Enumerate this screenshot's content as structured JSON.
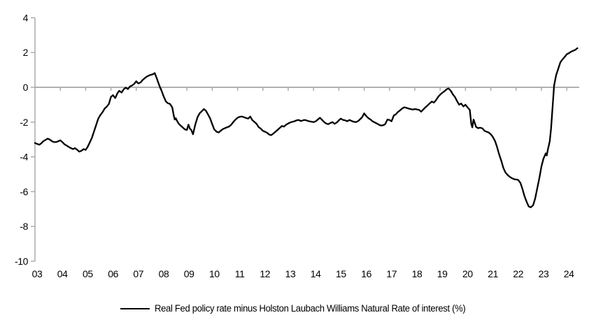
{
  "legend": {
    "series_label": "Real Fed policy rate minus Holston Laubach Williams Natural Rate of interest (%)"
  },
  "colors": {
    "series_line": "#000000",
    "axis_gray": "#a6a6a6",
    "background": "#ffffff",
    "tick_text": "#000000"
  },
  "chart_data": {
    "type": "line",
    "title": "",
    "xlabel": "",
    "ylabel": "",
    "ylim": [
      -10,
      4
    ],
    "xlim_years": [
      2003,
      2024.5
    ],
    "grid": "none",
    "zero_line": true,
    "legend_position": "bottom-center",
    "y_ticks": [
      4,
      2,
      0,
      -2,
      -4,
      -6,
      -8,
      -10
    ],
    "x_tick_labels": [
      "03",
      "04",
      "05",
      "06",
      "07",
      "08",
      "09",
      "10",
      "11",
      "12",
      "13",
      "14",
      "15",
      "16",
      "17",
      "18",
      "19",
      "20",
      "21",
      "22",
      "23",
      "24"
    ],
    "series": [
      {
        "name": "Real Fed policy rate minus Holston Laubach Williams Natural Rate of interest (%)",
        "color": "#000000",
        "points": [
          [
            2003.0,
            -3.2
          ],
          [
            2003.08,
            -3.25
          ],
          [
            2003.17,
            -3.3
          ],
          [
            2003.25,
            -3.22
          ],
          [
            2003.33,
            -3.1
          ],
          [
            2003.42,
            -3.02
          ],
          [
            2003.5,
            -2.95
          ],
          [
            2003.58,
            -3.0
          ],
          [
            2003.67,
            -3.1
          ],
          [
            2003.75,
            -3.15
          ],
          [
            2003.83,
            -3.15
          ],
          [
            2003.92,
            -3.1
          ],
          [
            2004.0,
            -3.05
          ],
          [
            2004.08,
            -3.15
          ],
          [
            2004.17,
            -3.28
          ],
          [
            2004.25,
            -3.35
          ],
          [
            2004.33,
            -3.42
          ],
          [
            2004.42,
            -3.5
          ],
          [
            2004.5,
            -3.55
          ],
          [
            2004.58,
            -3.5
          ],
          [
            2004.67,
            -3.6
          ],
          [
            2004.75,
            -3.7
          ],
          [
            2004.83,
            -3.65
          ],
          [
            2004.92,
            -3.55
          ],
          [
            2005.0,
            -3.6
          ],
          [
            2005.08,
            -3.42
          ],
          [
            2005.17,
            -3.15
          ],
          [
            2005.25,
            -2.9
          ],
          [
            2005.33,
            -2.55
          ],
          [
            2005.42,
            -2.15
          ],
          [
            2005.5,
            -1.8
          ],
          [
            2005.58,
            -1.6
          ],
          [
            2005.67,
            -1.42
          ],
          [
            2005.75,
            -1.22
          ],
          [
            2005.83,
            -1.12
          ],
          [
            2005.92,
            -0.95
          ],
          [
            2006.0,
            -0.55
          ],
          [
            2006.08,
            -0.45
          ],
          [
            2006.17,
            -0.62
          ],
          [
            2006.25,
            -0.35
          ],
          [
            2006.33,
            -0.2
          ],
          [
            2006.42,
            -0.3
          ],
          [
            2006.5,
            -0.12
          ],
          [
            2006.58,
            -0.02
          ],
          [
            2006.67,
            -0.1
          ],
          [
            2006.75,
            0.05
          ],
          [
            2006.83,
            0.1
          ],
          [
            2006.92,
            0.2
          ],
          [
            2007.0,
            0.35
          ],
          [
            2007.08,
            0.22
          ],
          [
            2007.17,
            0.28
          ],
          [
            2007.25,
            0.42
          ],
          [
            2007.33,
            0.52
          ],
          [
            2007.42,
            0.62
          ],
          [
            2007.5,
            0.68
          ],
          [
            2007.58,
            0.72
          ],
          [
            2007.67,
            0.76
          ],
          [
            2007.73,
            0.82
          ],
          [
            2007.8,
            0.55
          ],
          [
            2007.88,
            0.22
          ],
          [
            2007.95,
            -0.05
          ],
          [
            2008.0,
            -0.2
          ],
          [
            2008.08,
            -0.52
          ],
          [
            2008.17,
            -0.82
          ],
          [
            2008.25,
            -0.92
          ],
          [
            2008.33,
            -0.95
          ],
          [
            2008.42,
            -1.15
          ],
          [
            2008.48,
            -1.62
          ],
          [
            2008.52,
            -1.85
          ],
          [
            2008.56,
            -1.78
          ],
          [
            2008.62,
            -1.95
          ],
          [
            2008.67,
            -2.08
          ],
          [
            2008.75,
            -2.2
          ],
          [
            2008.83,
            -2.3
          ],
          [
            2008.92,
            -2.42
          ],
          [
            2009.0,
            -2.45
          ],
          [
            2009.06,
            -2.15
          ],
          [
            2009.12,
            -2.38
          ],
          [
            2009.17,
            -2.45
          ],
          [
            2009.24,
            -2.7
          ],
          [
            2009.33,
            -2.15
          ],
          [
            2009.42,
            -1.72
          ],
          [
            2009.5,
            -1.5
          ],
          [
            2009.58,
            -1.38
          ],
          [
            2009.67,
            -1.25
          ],
          [
            2009.75,
            -1.35
          ],
          [
            2009.83,
            -1.55
          ],
          [
            2009.92,
            -1.8
          ],
          [
            2010.0,
            -2.12
          ],
          [
            2010.08,
            -2.42
          ],
          [
            2010.17,
            -2.55
          ],
          [
            2010.25,
            -2.6
          ],
          [
            2010.33,
            -2.5
          ],
          [
            2010.42,
            -2.4
          ],
          [
            2010.5,
            -2.35
          ],
          [
            2010.58,
            -2.3
          ],
          [
            2010.67,
            -2.25
          ],
          [
            2010.75,
            -2.15
          ],
          [
            2010.83,
            -2.0
          ],
          [
            2010.92,
            -1.85
          ],
          [
            2011.0,
            -1.75
          ],
          [
            2011.08,
            -1.7
          ],
          [
            2011.17,
            -1.68
          ],
          [
            2011.25,
            -1.72
          ],
          [
            2011.33,
            -1.76
          ],
          [
            2011.42,
            -1.8
          ],
          [
            2011.5,
            -1.68
          ],
          [
            2011.58,
            -1.88
          ],
          [
            2011.67,
            -2.0
          ],
          [
            2011.75,
            -2.1
          ],
          [
            2011.83,
            -2.28
          ],
          [
            2011.92,
            -2.38
          ],
          [
            2012.0,
            -2.5
          ],
          [
            2012.08,
            -2.55
          ],
          [
            2012.17,
            -2.62
          ],
          [
            2012.25,
            -2.72
          ],
          [
            2012.33,
            -2.75
          ],
          [
            2012.42,
            -2.65
          ],
          [
            2012.5,
            -2.55
          ],
          [
            2012.58,
            -2.45
          ],
          [
            2012.67,
            -2.33
          ],
          [
            2012.75,
            -2.22
          ],
          [
            2012.83,
            -2.26
          ],
          [
            2012.92,
            -2.15
          ],
          [
            2013.0,
            -2.08
          ],
          [
            2013.08,
            -2.02
          ],
          [
            2013.17,
            -1.98
          ],
          [
            2013.25,
            -1.95
          ],
          [
            2013.33,
            -1.9
          ],
          [
            2013.42,
            -1.88
          ],
          [
            2013.5,
            -1.94
          ],
          [
            2013.58,
            -1.9
          ],
          [
            2013.67,
            -1.88
          ],
          [
            2013.75,
            -1.92
          ],
          [
            2013.83,
            -1.95
          ],
          [
            2013.92,
            -1.98
          ],
          [
            2014.0,
            -2.0
          ],
          [
            2014.08,
            -1.96
          ],
          [
            2014.17,
            -1.85
          ],
          [
            2014.25,
            -1.75
          ],
          [
            2014.33,
            -1.86
          ],
          [
            2014.42,
            -2.0
          ],
          [
            2014.5,
            -2.08
          ],
          [
            2014.58,
            -2.12
          ],
          [
            2014.67,
            -2.05
          ],
          [
            2014.75,
            -2.0
          ],
          [
            2014.83,
            -2.1
          ],
          [
            2014.92,
            -2.02
          ],
          [
            2015.0,
            -1.9
          ],
          [
            2015.08,
            -1.8
          ],
          [
            2015.17,
            -1.88
          ],
          [
            2015.25,
            -1.9
          ],
          [
            2015.33,
            -1.95
          ],
          [
            2015.42,
            -1.88
          ],
          [
            2015.5,
            -1.93
          ],
          [
            2015.58,
            -1.98
          ],
          [
            2015.67,
            -2.0
          ],
          [
            2015.75,
            -1.95
          ],
          [
            2015.83,
            -1.85
          ],
          [
            2015.92,
            -1.72
          ],
          [
            2016.0,
            -1.5
          ],
          [
            2016.08,
            -1.65
          ],
          [
            2016.17,
            -1.78
          ],
          [
            2016.25,
            -1.85
          ],
          [
            2016.33,
            -1.95
          ],
          [
            2016.42,
            -2.02
          ],
          [
            2016.5,
            -2.08
          ],
          [
            2016.58,
            -2.15
          ],
          [
            2016.67,
            -2.2
          ],
          [
            2016.75,
            -2.18
          ],
          [
            2016.83,
            -2.12
          ],
          [
            2016.92,
            -1.85
          ],
          [
            2017.0,
            -1.88
          ],
          [
            2017.08,
            -1.95
          ],
          [
            2017.17,
            -1.62
          ],
          [
            2017.25,
            -1.55
          ],
          [
            2017.33,
            -1.42
          ],
          [
            2017.42,
            -1.32
          ],
          [
            2017.5,
            -1.22
          ],
          [
            2017.58,
            -1.15
          ],
          [
            2017.67,
            -1.18
          ],
          [
            2017.75,
            -1.22
          ],
          [
            2017.83,
            -1.25
          ],
          [
            2017.92,
            -1.28
          ],
          [
            2018.0,
            -1.25
          ],
          [
            2018.08,
            -1.27
          ],
          [
            2018.17,
            -1.3
          ],
          [
            2018.25,
            -1.4
          ],
          [
            2018.33,
            -1.28
          ],
          [
            2018.42,
            -1.15
          ],
          [
            2018.5,
            -1.05
          ],
          [
            2018.58,
            -0.93
          ],
          [
            2018.67,
            -0.82
          ],
          [
            2018.75,
            -0.88
          ],
          [
            2018.83,
            -0.75
          ],
          [
            2018.92,
            -0.55
          ],
          [
            2019.0,
            -0.42
          ],
          [
            2019.08,
            -0.32
          ],
          [
            2019.17,
            -0.22
          ],
          [
            2019.25,
            -0.12
          ],
          [
            2019.33,
            -0.06
          ],
          [
            2019.42,
            -0.2
          ],
          [
            2019.5,
            -0.4
          ],
          [
            2019.58,
            -0.55
          ],
          [
            2019.67,
            -0.8
          ],
          [
            2019.75,
            -1.0
          ],
          [
            2019.83,
            -0.93
          ],
          [
            2019.92,
            -1.1
          ],
          [
            2020.0,
            -1.0
          ],
          [
            2020.08,
            -1.15
          ],
          [
            2020.17,
            -1.3
          ],
          [
            2020.23,
            -2.1
          ],
          [
            2020.27,
            -2.3
          ],
          [
            2020.32,
            -1.85
          ],
          [
            2020.42,
            -2.28
          ],
          [
            2020.5,
            -2.35
          ],
          [
            2020.58,
            -2.32
          ],
          [
            2020.67,
            -2.36
          ],
          [
            2020.75,
            -2.5
          ],
          [
            2020.83,
            -2.55
          ],
          [
            2020.92,
            -2.6
          ],
          [
            2021.0,
            -2.7
          ],
          [
            2021.08,
            -2.85
          ],
          [
            2021.17,
            -3.1
          ],
          [
            2021.25,
            -3.45
          ],
          [
            2021.33,
            -3.85
          ],
          [
            2021.42,
            -4.25
          ],
          [
            2021.5,
            -4.65
          ],
          [
            2021.58,
            -4.9
          ],
          [
            2021.67,
            -5.05
          ],
          [
            2021.75,
            -5.15
          ],
          [
            2021.83,
            -5.22
          ],
          [
            2021.92,
            -5.28
          ],
          [
            2022.0,
            -5.3
          ],
          [
            2022.08,
            -5.32
          ],
          [
            2022.17,
            -5.5
          ],
          [
            2022.25,
            -5.85
          ],
          [
            2022.33,
            -6.25
          ],
          [
            2022.42,
            -6.6
          ],
          [
            2022.5,
            -6.85
          ],
          [
            2022.58,
            -6.9
          ],
          [
            2022.67,
            -6.78
          ],
          [
            2022.75,
            -6.4
          ],
          [
            2022.83,
            -5.85
          ],
          [
            2022.92,
            -5.2
          ],
          [
            2023.0,
            -4.55
          ],
          [
            2023.08,
            -4.1
          ],
          [
            2023.17,
            -3.8
          ],
          [
            2023.21,
            -3.92
          ],
          [
            2023.25,
            -3.6
          ],
          [
            2023.33,
            -3.1
          ],
          [
            2023.38,
            -2.35
          ],
          [
            2023.42,
            -1.55
          ],
          [
            2023.46,
            -0.7
          ],
          [
            2023.5,
            0.1
          ],
          [
            2023.58,
            0.7
          ],
          [
            2023.67,
            1.1
          ],
          [
            2023.75,
            1.45
          ],
          [
            2023.83,
            1.6
          ],
          [
            2023.92,
            1.75
          ],
          [
            2024.0,
            1.9
          ],
          [
            2024.08,
            1.96
          ],
          [
            2024.17,
            2.05
          ],
          [
            2024.25,
            2.1
          ],
          [
            2024.33,
            2.15
          ],
          [
            2024.42,
            2.25
          ]
        ]
      }
    ]
  }
}
